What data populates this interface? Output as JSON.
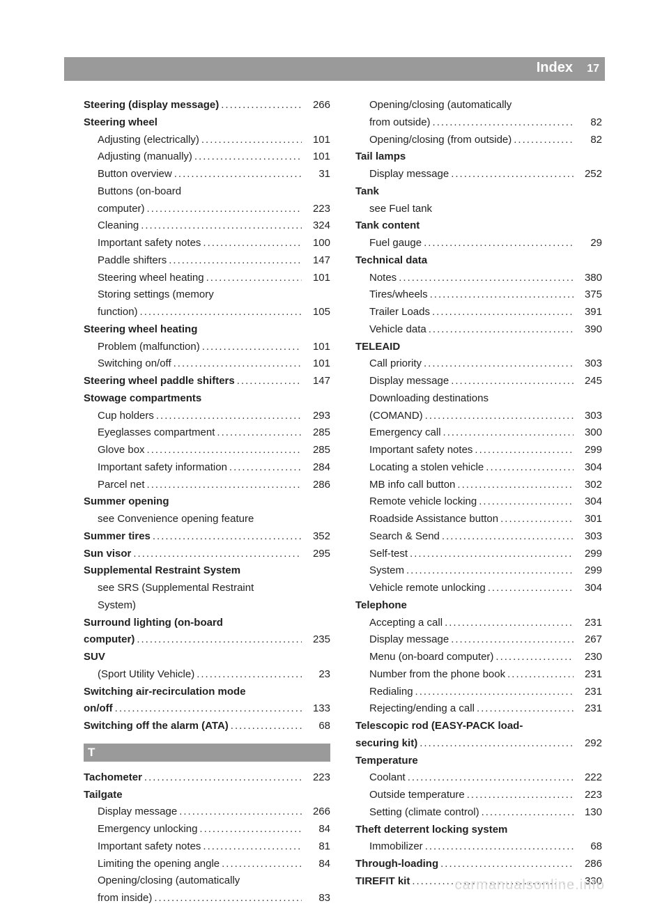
{
  "header": {
    "title": "Index",
    "page": "17"
  },
  "section_letter": "T",
  "watermark": "carmanualsonline.info",
  "dots": "..............................................................",
  "col1": [
    {
      "type": "entry",
      "bold": true,
      "label": "Steering (display message)",
      "page": "266"
    },
    {
      "type": "heading",
      "label": "Steering wheel"
    },
    {
      "type": "entry",
      "sub": true,
      "label": "Adjusting (electrically)",
      "page": "101"
    },
    {
      "type": "entry",
      "sub": true,
      "label": "Adjusting (manually)",
      "page": "101"
    },
    {
      "type": "entry",
      "sub": true,
      "label": "Button overview",
      "page": "31"
    },
    {
      "type": "subtext",
      "label": "Buttons (on-board"
    },
    {
      "type": "entry",
      "sub": true,
      "label": "computer)",
      "page": "223"
    },
    {
      "type": "entry",
      "sub": true,
      "label": "Cleaning",
      "page": "324"
    },
    {
      "type": "entry",
      "sub": true,
      "label": "Important safety notes",
      "page": "100"
    },
    {
      "type": "entry",
      "sub": true,
      "label": "Paddle shifters",
      "page": "147"
    },
    {
      "type": "entry",
      "sub": true,
      "label": "Steering wheel heating",
      "page": "101"
    },
    {
      "type": "subtext",
      "label": "Storing settings (memory"
    },
    {
      "type": "entry",
      "sub": true,
      "label": "function)",
      "page": "105"
    },
    {
      "type": "heading",
      "label": "Steering wheel heating"
    },
    {
      "type": "entry",
      "sub": true,
      "label": "Problem (malfunction)",
      "page": "101"
    },
    {
      "type": "entry",
      "sub": true,
      "label": "Switching on/off",
      "page": "101"
    },
    {
      "type": "entry",
      "bold": true,
      "label": "Steering wheel paddle shifters",
      "page": "147"
    },
    {
      "type": "heading",
      "label": "Stowage compartments"
    },
    {
      "type": "entry",
      "sub": true,
      "label": "Cup holders",
      "page": "293"
    },
    {
      "type": "entry",
      "sub": true,
      "label": "Eyeglasses compartment",
      "page": "285"
    },
    {
      "type": "entry",
      "sub": true,
      "label": "Glove box",
      "page": "285"
    },
    {
      "type": "entry",
      "sub": true,
      "label": "Important safety information",
      "page": "284"
    },
    {
      "type": "entry",
      "sub": true,
      "label": "Parcel net",
      "page": "286"
    },
    {
      "type": "heading",
      "label": "Summer opening"
    },
    {
      "type": "subtext",
      "label": "see Convenience opening feature"
    },
    {
      "type": "entry",
      "bold": true,
      "label": "Summer tires",
      "page": "352"
    },
    {
      "type": "entry",
      "bold": true,
      "label": "Sun visor",
      "page": "295"
    },
    {
      "type": "heading",
      "label": "Supplemental Restraint System"
    },
    {
      "type": "subtext",
      "label": "see SRS (Supplemental Restraint"
    },
    {
      "type": "subtext",
      "label": "System)"
    },
    {
      "type": "heading",
      "label": "Surround lighting (on-board"
    },
    {
      "type": "entry",
      "bold": true,
      "label": "computer)",
      "page": "235"
    },
    {
      "type": "heading",
      "label": "SUV"
    },
    {
      "type": "entry",
      "sub": true,
      "label": "(Sport Utility Vehicle)",
      "page": "23"
    },
    {
      "type": "heading",
      "label": "Switching air-recirculation mode"
    },
    {
      "type": "entry",
      "bold": true,
      "label": "on/off",
      "page": "133"
    },
    {
      "type": "entry",
      "bold": true,
      "label": "Switching off the alarm (ATA)",
      "page": "68"
    },
    {
      "type": "section"
    },
    {
      "type": "entry",
      "bold": true,
      "label": "Tachometer",
      "page": "223"
    },
    {
      "type": "heading",
      "label": "Tailgate"
    },
    {
      "type": "entry",
      "sub": true,
      "label": "Display message",
      "page": "266"
    },
    {
      "type": "entry",
      "sub": true,
      "label": "Emergency unlocking",
      "page": "84"
    },
    {
      "type": "entry",
      "sub": true,
      "label": "Important safety notes",
      "page": "81"
    },
    {
      "type": "entry",
      "sub": true,
      "label": "Limiting the opening angle",
      "page": "84"
    },
    {
      "type": "subtext",
      "label": "Opening/closing (automatically"
    },
    {
      "type": "entry",
      "sub": true,
      "label": "from inside)",
      "page": "83"
    }
  ],
  "col2": [
    {
      "type": "subtext",
      "label": "Opening/closing (automatically"
    },
    {
      "type": "entry",
      "sub": true,
      "label": "from outside)",
      "page": "82"
    },
    {
      "type": "entry",
      "sub": true,
      "label": "Opening/closing (from outside)",
      "page": "82"
    },
    {
      "type": "heading",
      "label": "Tail lamps"
    },
    {
      "type": "entry",
      "sub": true,
      "label": "Display message",
      "page": "252"
    },
    {
      "type": "heading",
      "label": "Tank"
    },
    {
      "type": "subtext",
      "label": "see Fuel tank"
    },
    {
      "type": "heading",
      "label": "Tank content"
    },
    {
      "type": "entry",
      "sub": true,
      "label": "Fuel gauge",
      "page": "29"
    },
    {
      "type": "heading",
      "label": "Technical data"
    },
    {
      "type": "entry",
      "sub": true,
      "label": "Notes",
      "page": "380"
    },
    {
      "type": "entry",
      "sub": true,
      "label": "Tires/wheels",
      "page": "375"
    },
    {
      "type": "entry",
      "sub": true,
      "label": "Trailer Loads",
      "page": "391"
    },
    {
      "type": "entry",
      "sub": true,
      "label": "Vehicle data",
      "page": "390"
    },
    {
      "type": "heading",
      "label": "TELEAID"
    },
    {
      "type": "entry",
      "sub": true,
      "label": "Call priority",
      "page": "303"
    },
    {
      "type": "entry",
      "sub": true,
      "label": "Display message",
      "page": "245"
    },
    {
      "type": "subtext",
      "label": "Downloading destinations"
    },
    {
      "type": "entry",
      "sub": true,
      "label": "(COMAND)",
      "page": "303"
    },
    {
      "type": "entry",
      "sub": true,
      "label": "Emergency call",
      "page": "300"
    },
    {
      "type": "entry",
      "sub": true,
      "label": "Important safety notes",
      "page": "299"
    },
    {
      "type": "entry",
      "sub": true,
      "label": "Locating a stolen vehicle",
      "page": "304"
    },
    {
      "type": "entry",
      "sub": true,
      "label": "MB info call button",
      "page": "302"
    },
    {
      "type": "entry",
      "sub": true,
      "label": "Remote vehicle locking",
      "page": "304"
    },
    {
      "type": "entry",
      "sub": true,
      "label": "Roadside Assistance button",
      "page": "301"
    },
    {
      "type": "entry",
      "sub": true,
      "label": "Search & Send",
      "page": "303"
    },
    {
      "type": "entry",
      "sub": true,
      "label": "Self-test",
      "page": "299"
    },
    {
      "type": "entry",
      "sub": true,
      "label": "System",
      "page": "299"
    },
    {
      "type": "entry",
      "sub": true,
      "label": "Vehicle remote unlocking",
      "page": "304"
    },
    {
      "type": "heading",
      "label": "Telephone"
    },
    {
      "type": "entry",
      "sub": true,
      "label": "Accepting a call",
      "page": "231"
    },
    {
      "type": "entry",
      "sub": true,
      "label": "Display message",
      "page": "267"
    },
    {
      "type": "entry",
      "sub": true,
      "label": "Menu (on-board computer)",
      "page": "230"
    },
    {
      "type": "entry",
      "sub": true,
      "label": "Number from the phone book",
      "page": "231"
    },
    {
      "type": "entry",
      "sub": true,
      "label": "Redialing",
      "page": "231"
    },
    {
      "type": "entry",
      "sub": true,
      "label": "Rejecting/ending a call",
      "page": "231"
    },
    {
      "type": "heading",
      "label": "Telescopic rod (EASY-PACK load-"
    },
    {
      "type": "entry",
      "bold": true,
      "label": "securing kit)",
      "page": "292"
    },
    {
      "type": "heading",
      "label": "Temperature"
    },
    {
      "type": "entry",
      "sub": true,
      "label": "Coolant",
      "page": "222"
    },
    {
      "type": "entry",
      "sub": true,
      "label": "Outside temperature",
      "page": "223"
    },
    {
      "type": "entry",
      "sub": true,
      "label": "Setting (climate control)",
      "page": "130"
    },
    {
      "type": "heading",
      "label": "Theft deterrent locking system"
    },
    {
      "type": "entry",
      "sub": true,
      "label": "Immobilizer",
      "page": "68"
    },
    {
      "type": "entry",
      "bold": true,
      "label": "Through-loading",
      "page": "286"
    },
    {
      "type": "entry",
      "bold": true,
      "label": "TIREFIT kit",
      "page": "330"
    }
  ]
}
